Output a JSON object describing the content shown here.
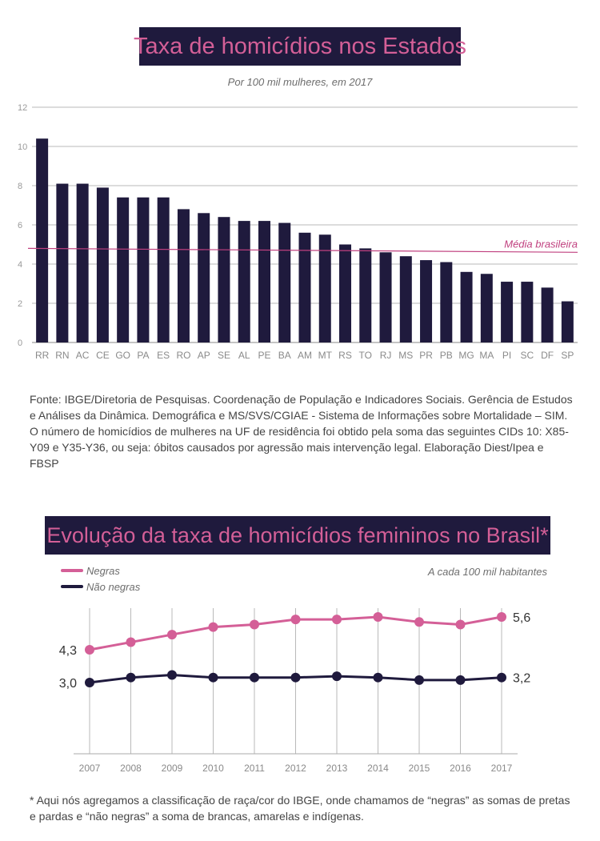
{
  "chart1": {
    "title": "Taxa de homicídios nos Estados",
    "subtitle": "Por 100 mil mulheres, em 2017",
    "mean_label": "Média brasileira",
    "source": "Fonte: IBGE/Diretoria de Pesquisas. Coordenação de População e Indicadores Sociais. Gerência de Estudos e Análises da Dinâmica. Demográfica e MS/SVS/CGIAE - Sistema de Informações sobre Mortalidade – SIM. O número de homicídios de mulheres na UF de residência foi obtido pela soma das seguintes CIDs 10: X85-Y09 e Y35-Y36, ou seja: óbitos causados por agressão mais intervenção legal. Elaboração Diest/Ipea e FBSP"
  },
  "chart2": {
    "title": "Evolução da taxa de homicídios femininos no Brasil*",
    "note": "A cada 100 mil habitantes",
    "footnote": "* Aqui nós agregamos a classificação de raça/cor do IBGE, onde chamamos de “negras” as somas de pretas e pardas e “não negras” a soma de brancas, amarelas e indígenas."
  },
  "colors": {
    "dark": "#1f1a3d",
    "pink": "#d45f97",
    "grid": "#b9b9b9"
  },
  "chart_data": [
    {
      "type": "bar",
      "title": "Taxa de homicídios nos Estados",
      "subtitle": "Por 100 mil mulheres, em 2017",
      "categories": [
        "RR",
        "RN",
        "AC",
        "CE",
        "GO",
        "PA",
        "ES",
        "RO",
        "AP",
        "SE",
        "AL",
        "PE",
        "BA",
        "AM",
        "MT",
        "RS",
        "TO",
        "RJ",
        "MS",
        "PR",
        "PB",
        "MG",
        "MA",
        "PI",
        "SC",
        "DF",
        "SP"
      ],
      "values": [
        10.4,
        8.1,
        8.1,
        7.9,
        7.4,
        7.4,
        7.4,
        6.8,
        6.6,
        6.4,
        6.2,
        6.2,
        6.1,
        5.6,
        5.5,
        5.0,
        4.8,
        4.6,
        4.4,
        4.2,
        4.1,
        3.6,
        3.5,
        3.1,
        3.1,
        2.8,
        2.1
      ],
      "yticks": [
        "0",
        "2",
        "4",
        "6",
        "8",
        "10",
        "12"
      ],
      "ylim": [
        0,
        12
      ],
      "grid": true,
      "reference_line": {
        "label": "Média brasileira",
        "value_start": 4.8,
        "value_end": 4.6
      }
    },
    {
      "type": "line",
      "x": [
        "2007",
        "2008",
        "2009",
        "2010",
        "2011",
        "2012",
        "2013",
        "2014",
        "2015",
        "2016",
        "2017"
      ],
      "series": [
        {
          "name": "Negras",
          "values": [
            4.3,
            4.6,
            4.9,
            5.2,
            5.3,
            5.5,
            5.5,
            5.6,
            5.4,
            5.3,
            5.6
          ],
          "start_label": "4,3",
          "end_label": "5,6"
        },
        {
          "name": "Não negras",
          "values": [
            3.0,
            3.2,
            3.3,
            3.2,
            3.2,
            3.2,
            3.25,
            3.2,
            3.1,
            3.1,
            3.2
          ],
          "start_label": "3,0",
          "end_label": "3,2"
        }
      ],
      "ylim": [
        0,
        7
      ],
      "grid": true,
      "legend": "top-left"
    }
  ]
}
